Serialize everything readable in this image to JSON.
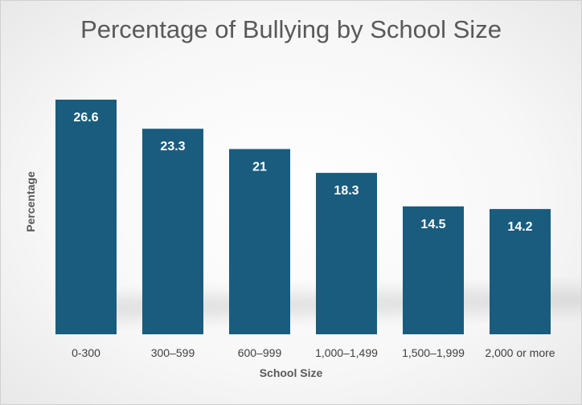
{
  "chart_data": {
    "type": "bar",
    "title": "Percentage of Bullying by School Size",
    "xlabel": "School Size",
    "ylabel": "Percentage",
    "categories": [
      "0-300",
      "300–599",
      "600–999",
      "1,000–1,499",
      "1,500–1,999",
      "2,000 or more"
    ],
    "values": [
      26.6,
      23.3,
      21,
      18.3,
      14.5,
      14.2
    ],
    "data_labels": [
      "26.6",
      "23.3",
      "21",
      "18.3",
      "14.5",
      "14.2"
    ],
    "ylim": [
      0,
      26.6
    ],
    "grid": false,
    "legend": "none",
    "bar_color": "#1a5c7e"
  }
}
